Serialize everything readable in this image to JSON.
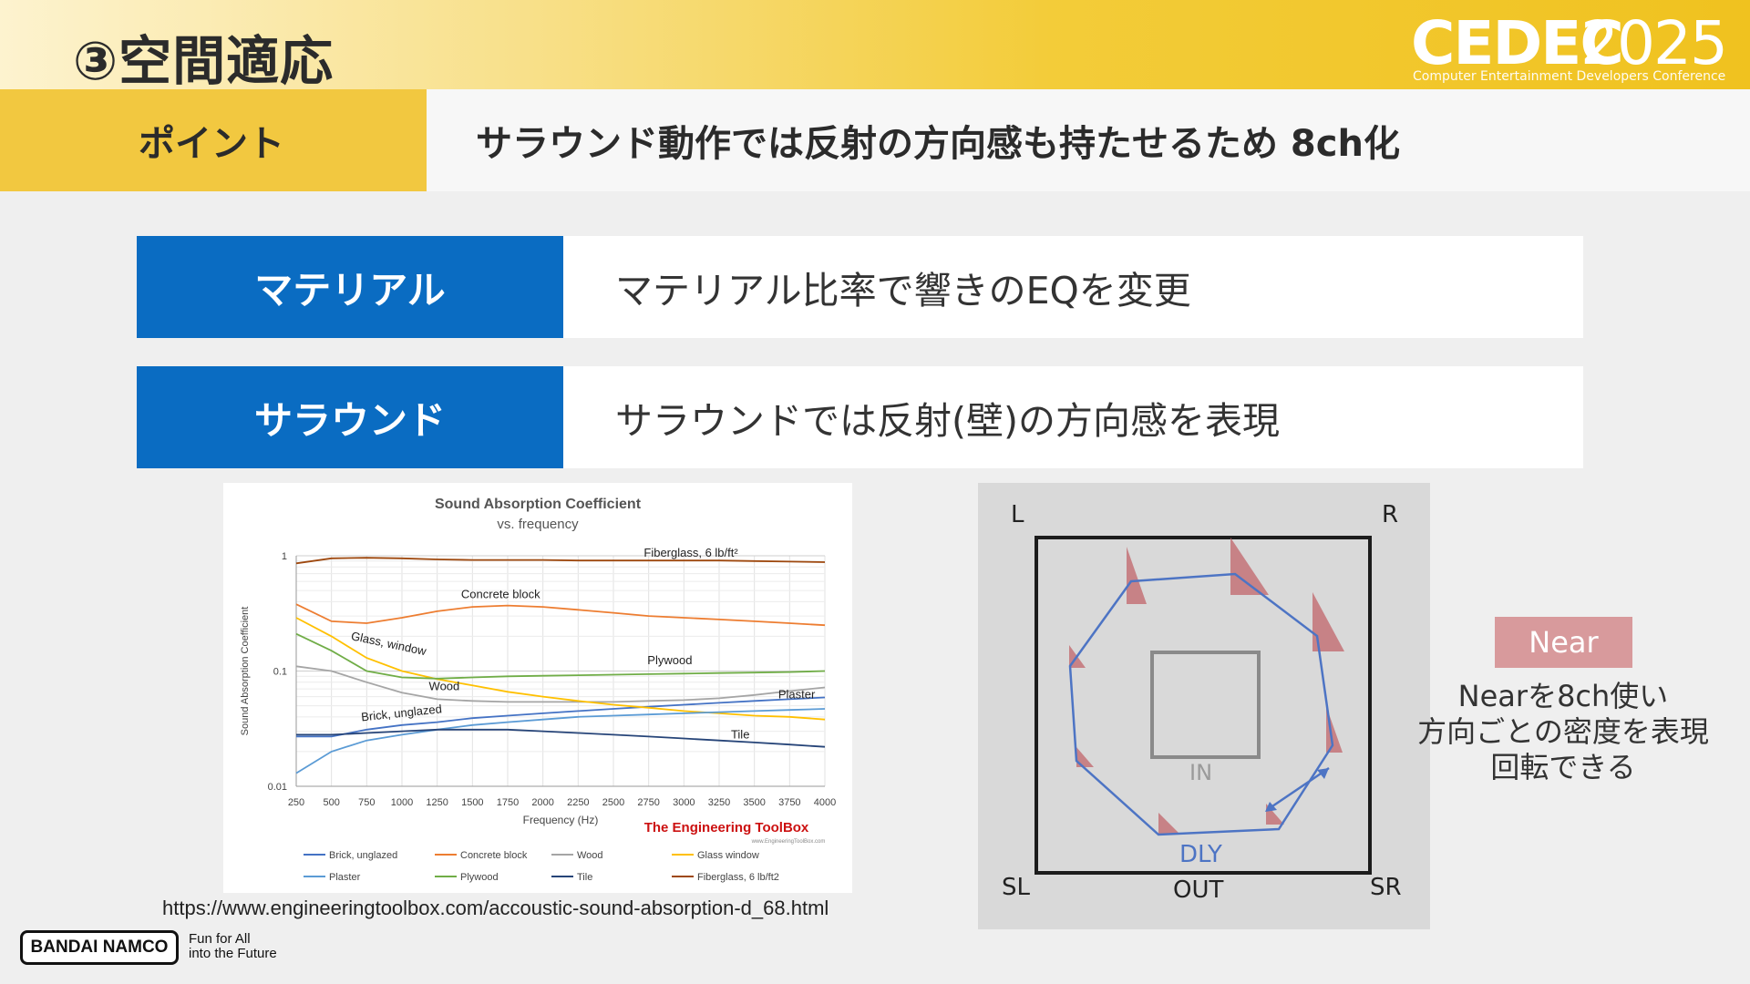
{
  "header": {
    "title": "③空間適応",
    "logo": {
      "main": "CEDEC",
      "year": "2025",
      "subtitle": "Computer Entertainment Developers Conference"
    }
  },
  "point": {
    "label": "ポイント",
    "text": "サラウンド動作では反射の方向感も持たせるため 8ch化"
  },
  "rows": [
    {
      "head": "マテリアル",
      "body": "マテリアル比率で響きのEQを変更"
    },
    {
      "head": "サラウンド",
      "body": "サラウンドでは反射(壁)の方向感を表現"
    }
  ],
  "chart_data": {
    "type": "line",
    "title": "Sound Absorption Coefficient",
    "subtitle": "vs. frequency",
    "xlabel": "Frequency (Hz)",
    "ylabel": "Sound Absorption Coefficient",
    "yscale": "log",
    "xlim": [
      250,
      4000
    ],
    "ylim": [
      0.01,
      1
    ],
    "grid": true,
    "x": [
      250,
      500,
      750,
      1000,
      1250,
      1500,
      1750,
      2000,
      2250,
      2500,
      2750,
      3000,
      3250,
      3500,
      3750,
      4000
    ],
    "x_tick_labels": [
      "250",
      "500",
      "750",
      "1000",
      "1250",
      "1500",
      "1750",
      "2000",
      "2250",
      "2500",
      "2750",
      "3000",
      "3250",
      "3500",
      "3750",
      "4000"
    ],
    "y_ticks": [
      0.01,
      0.1,
      1
    ],
    "y_tick_labels": [
      "0.01",
      "0.1",
      "1"
    ],
    "series": [
      {
        "name": "Brick, unglazed",
        "color": "#4472c4",
        "values": [
          0.027,
          0.027,
          0.031,
          0.034,
          0.036,
          0.039,
          0.041,
          0.043,
          0.045,
          0.047,
          0.049,
          0.051,
          0.053,
          0.055,
          0.057,
          0.059
        ]
      },
      {
        "name": "Concrete block",
        "color": "#ed7d31",
        "values": [
          0.38,
          0.27,
          0.26,
          0.29,
          0.33,
          0.36,
          0.37,
          0.36,
          0.34,
          0.32,
          0.3,
          0.29,
          0.28,
          0.27,
          0.26,
          0.25
        ]
      },
      {
        "name": "Wood",
        "color": "#a5a5a5",
        "values": [
          0.11,
          0.1,
          0.08,
          0.065,
          0.057,
          0.055,
          0.054,
          0.054,
          0.054,
          0.054,
          0.055,
          0.056,
          0.058,
          0.062,
          0.067,
          0.072
        ]
      },
      {
        "name": "Glass window",
        "color": "#ffc000",
        "values": [
          0.29,
          0.2,
          0.13,
          0.1,
          0.085,
          0.075,
          0.066,
          0.06,
          0.055,
          0.051,
          0.048,
          0.045,
          0.043,
          0.041,
          0.04,
          0.038
        ]
      },
      {
        "name": "Plaster",
        "color": "#5b9bd5",
        "values": [
          0.013,
          0.02,
          0.025,
          0.028,
          0.031,
          0.034,
          0.036,
          0.038,
          0.04,
          0.041,
          0.042,
          0.043,
          0.044,
          0.045,
          0.046,
          0.047
        ]
      },
      {
        "name": "Plywood",
        "color": "#70ad47",
        "values": [
          0.21,
          0.15,
          0.1,
          0.088,
          0.086,
          0.088,
          0.09,
          0.091,
          0.092,
          0.093,
          0.094,
          0.095,
          0.096,
          0.097,
          0.098,
          0.1
        ]
      },
      {
        "name": "Tile",
        "color": "#264478",
        "values": [
          0.028,
          0.028,
          0.029,
          0.03,
          0.031,
          0.031,
          0.031,
          0.03,
          0.029,
          0.028,
          0.027,
          0.026,
          0.025,
          0.024,
          0.023,
          0.022
        ]
      },
      {
        "name": "Fiberglass, 6 lb/ft2",
        "color": "#9e480e",
        "values": [
          0.86,
          0.95,
          0.96,
          0.95,
          0.93,
          0.92,
          0.92,
          0.92,
          0.91,
          0.91,
          0.91,
          0.91,
          0.91,
          0.9,
          0.89,
          0.88
        ]
      }
    ],
    "annotations": [
      {
        "text": "Fiberglass, 6 lb/ft²",
        "x": 3050,
        "y": 0.98
      },
      {
        "text": "Concrete block",
        "x": 1700,
        "y": 0.43
      },
      {
        "text": "Glass, window",
        "x": 900,
        "y": 0.16
      },
      {
        "text": "Plywood",
        "x": 2900,
        "y": 0.115
      },
      {
        "text": "Wood",
        "x": 1300,
        "y": 0.068
      },
      {
        "text": "Plaster",
        "x": 3800,
        "y": 0.058
      },
      {
        "text": "Brick, unglazed",
        "x": 1000,
        "y": 0.04
      },
      {
        "text": "Tile",
        "x": 3400,
        "y": 0.026
      }
    ],
    "legend_labels": [
      "Brick, unglazed",
      "Concrete block",
      "Wood",
      "Glass window",
      "Plaster",
      "Plywood",
      "Tile",
      "Fiberglass, 6 lb/ft2"
    ],
    "watermark": "The Engineering ToolBox",
    "watermark_url": "www.EngineeringToolBox.com"
  },
  "source_url": "https://www.engineeringtoolbox.com/accoustic-sound-absorption-d_68.html",
  "diagram": {
    "labels": {
      "l": "L",
      "r": "R",
      "sl": "SL",
      "sr": "SR",
      "out": "OUT",
      "in": "IN",
      "dly": "DLY"
    },
    "colors": {
      "dly": "#4d74c4",
      "marker": "#c26b70"
    }
  },
  "near": {
    "badge": "Near",
    "desc_lines": [
      "Nearを8ch使い",
      "方向ごとの密度を表現",
      "回転できる"
    ]
  },
  "footer": {
    "company": "BANDAI NAMCO",
    "tagline_lines": [
      "Fun for All",
      "into the Future"
    ]
  }
}
